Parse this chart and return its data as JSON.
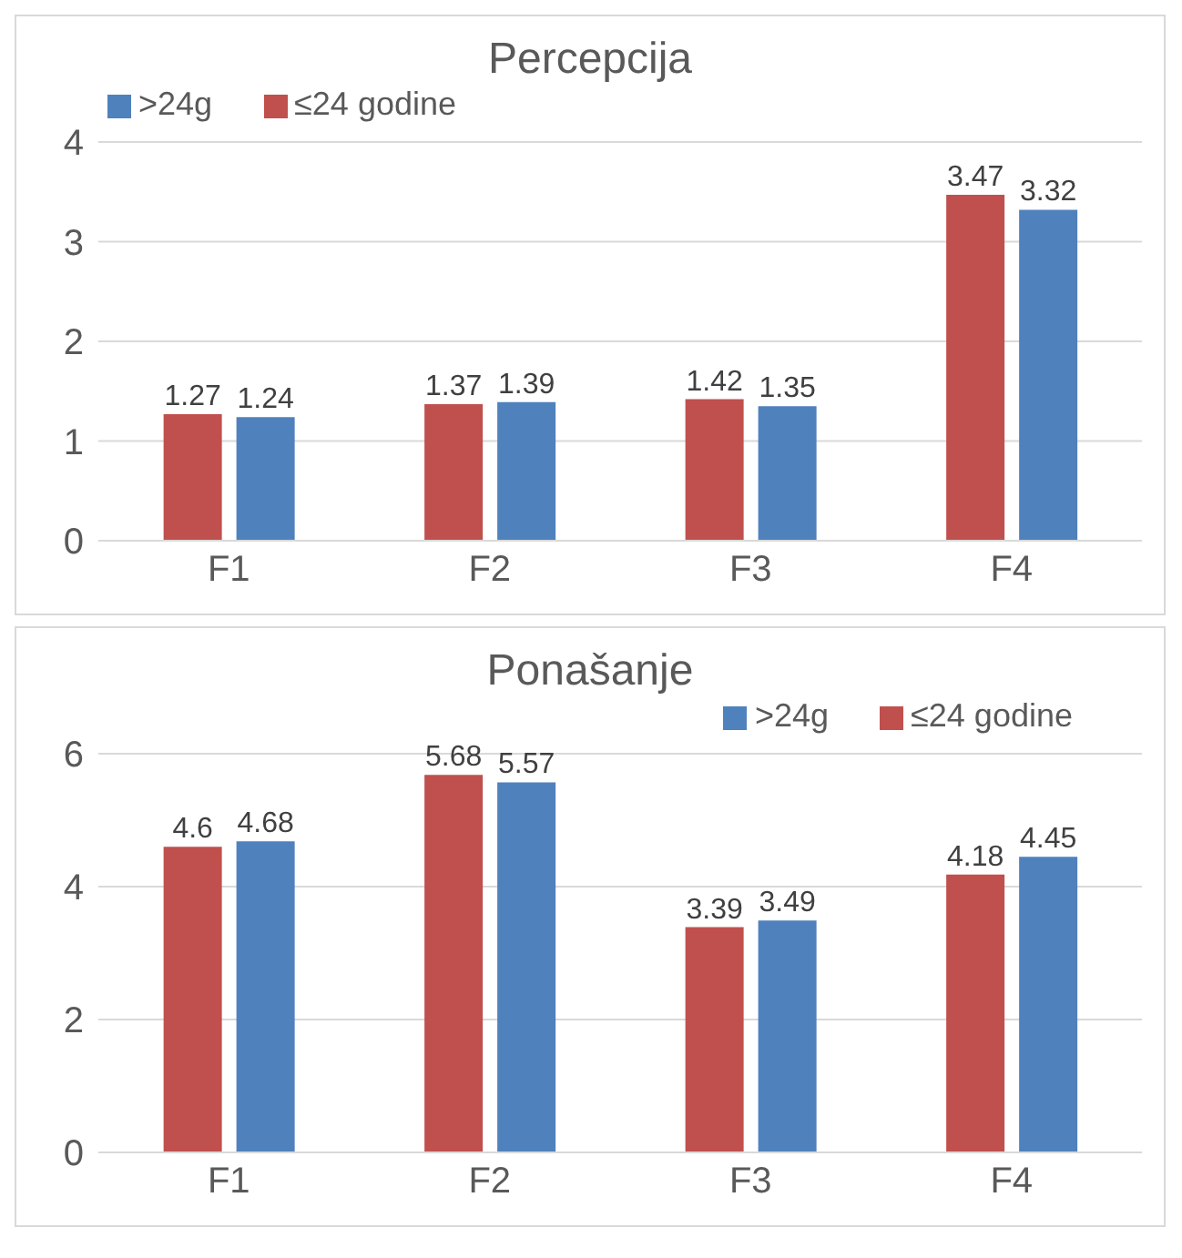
{
  "chart_data": [
    {
      "type": "bar",
      "title": "Percepcija",
      "categories": [
        "F1",
        "F2",
        "F3",
        "F4"
      ],
      "series": [
        {
          "name": "≤24 godine",
          "color": "#c0504d",
          "values": [
            1.27,
            1.37,
            1.42,
            3.47
          ]
        },
        {
          "name": ">24g",
          "color": "#4f81bd",
          "values": [
            1.24,
            1.39,
            1.35,
            3.32
          ]
        }
      ],
      "ylim": [
        0,
        4
      ],
      "yticks": [
        0,
        1,
        2,
        3,
        4
      ],
      "grid": "y",
      "legend": "top left",
      "data_labels": true
    },
    {
      "type": "bar",
      "title": "Ponašanje",
      "categories": [
        "F1",
        "F2",
        "F3",
        "F4"
      ],
      "series": [
        {
          "name": "≤24 godine",
          "color": "#c0504d",
          "values": [
            4.6,
            5.68,
            3.39,
            4.18
          ]
        },
        {
          "name": ">24g",
          "color": "#4f81bd",
          "values": [
            4.68,
            5.57,
            3.49,
            4.45
          ]
        }
      ],
      "ylim": [
        0,
        6
      ],
      "yticks": [
        0,
        2,
        4,
        6
      ],
      "grid": "y",
      "legend": "top right",
      "data_labels": true
    }
  ]
}
